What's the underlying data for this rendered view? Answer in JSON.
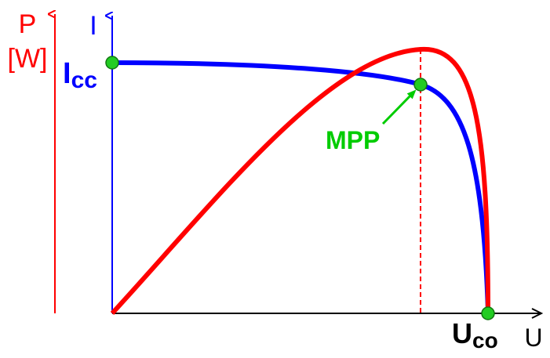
{
  "labels": {
    "p_axis": "P",
    "p_unit": "[W]",
    "i_axis": "I",
    "icc": {
      "main": "I",
      "sub": "cc"
    },
    "mpp": "MPP",
    "uco": {
      "main": "U",
      "sub": "co"
    },
    "u_axis": "U"
  }
}
